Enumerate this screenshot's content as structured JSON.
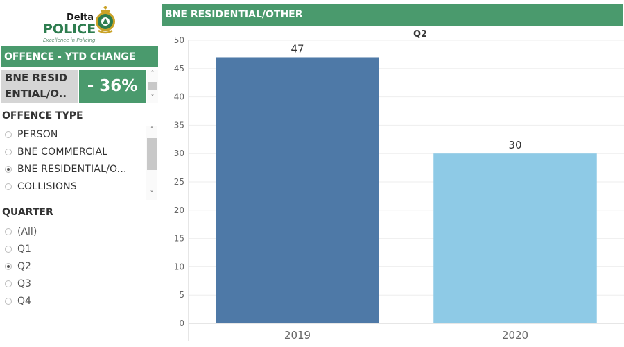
{
  "logo": {
    "top_text": "Delta",
    "main_text": "POLICE",
    "tagline": "Excellence in Policing",
    "icon": "police-crest-icon"
  },
  "ytd": {
    "header": "OFFENCE - YTD CHANGE",
    "offence_line1": "BNE RESID",
    "offence_line2": "ENTIAL/O..",
    "change": "- 36%"
  },
  "offence_type": {
    "title": "OFFENCE TYPE",
    "options": [
      "PERSON",
      "BNE COMMERCIAL",
      "BNE RESIDENTIAL/O...",
      "COLLISIONS"
    ],
    "selected": "BNE RESIDENTIAL/O..."
  },
  "quarter": {
    "title": "QUARTER",
    "options": [
      "(All)",
      "Q1",
      "Q2",
      "Q3",
      "Q4"
    ],
    "selected": "Q2"
  },
  "colors": {
    "header_green": "#4a9a6d",
    "bar_2019": "#4e79a7",
    "bar_2020": "#8ecae6"
  },
  "chart_data": {
    "type": "bar",
    "title": "BNE RESIDENTIAL/OTHER",
    "panel_label": "Q2",
    "categories": [
      "2019",
      "2020"
    ],
    "values": [
      47,
      30
    ],
    "colors": [
      "#4e79a7",
      "#8ecae6"
    ],
    "ylim": [
      0,
      50
    ],
    "yticks": [
      0,
      5,
      10,
      15,
      20,
      25,
      30,
      35,
      40,
      45,
      50
    ],
    "xlabel": "",
    "ylabel": "",
    "data_labels": true,
    "grid": true
  }
}
